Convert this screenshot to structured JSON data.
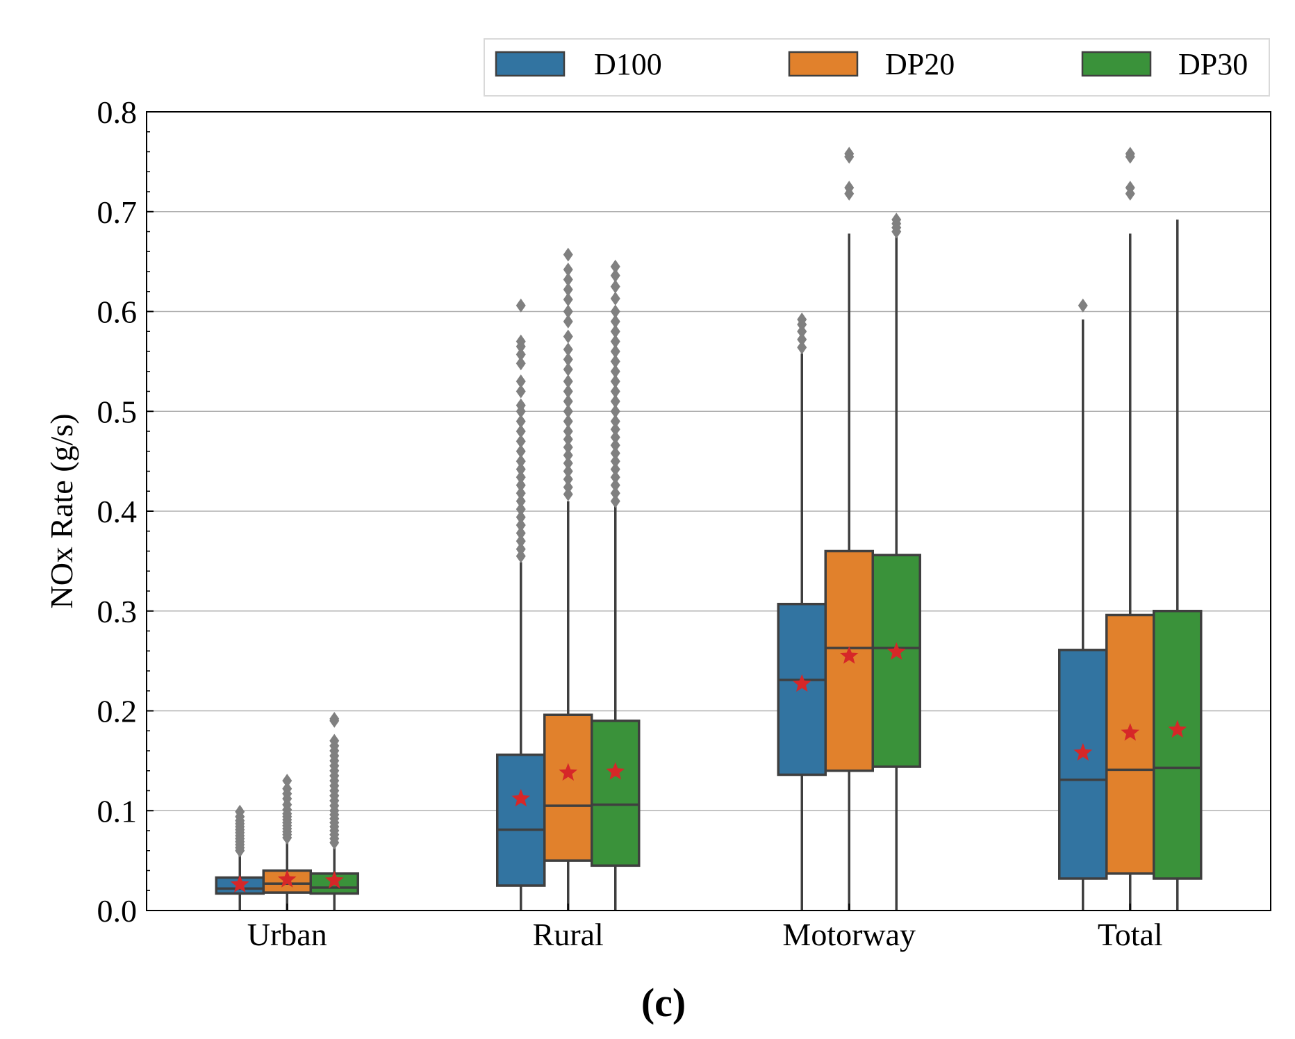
{
  "chart_data": {
    "type": "box",
    "title": "",
    "xlabel": "",
    "ylabel": "NOx Rate (g/s)",
    "ylim": [
      0.0,
      0.8
    ],
    "yticks": [
      "0.0",
      "0.1",
      "0.2",
      "0.3",
      "0.4",
      "0.5",
      "0.6",
      "0.7",
      "0.8"
    ],
    "grid": "horizontal",
    "legend_position": "top-right",
    "mean_marker": "star",
    "categories": [
      "Urban",
      "Rural",
      "Motorway",
      "Total"
    ],
    "series": [
      {
        "name": "D100",
        "color": "#3274a1",
        "boxes": [
          {
            "whisker_low": 0.0,
            "q1": 0.017,
            "median": 0.022,
            "q3": 0.033,
            "whisker_high": 0.057,
            "mean": 0.026,
            "outliers": [
              0.06,
              0.063,
              0.066,
              0.069,
              0.072,
              0.075,
              0.078,
              0.081,
              0.084,
              0.087,
              0.09,
              0.094,
              0.099
            ]
          },
          {
            "whisker_low": 0.0,
            "q1": 0.025,
            "median": 0.081,
            "q3": 0.156,
            "whisker_high": 0.349,
            "mean": 0.112,
            "outliers": [
              0.355,
              0.362,
              0.37,
              0.378,
              0.386,
              0.394,
              0.402,
              0.41,
              0.418,
              0.426,
              0.434,
              0.442,
              0.45,
              0.46,
              0.47,
              0.48,
              0.49,
              0.5,
              0.506,
              0.52,
              0.53,
              0.548,
              0.557,
              0.565,
              0.57,
              0.606
            ]
          },
          {
            "whisker_low": 0.0,
            "q1": 0.136,
            "median": 0.231,
            "q3": 0.307,
            "whisker_high": 0.558,
            "mean": 0.227,
            "outliers": [
              0.564,
              0.572,
              0.58,
              0.587,
              0.592
            ]
          },
          {
            "whisker_low": 0.0,
            "q1": 0.032,
            "median": 0.131,
            "q3": 0.261,
            "whisker_high": 0.592,
            "mean": 0.158,
            "outliers": [
              0.606
            ]
          }
        ]
      },
      {
        "name": "DP20",
        "color": "#e1812c",
        "boxes": [
          {
            "whisker_low": 0.0,
            "q1": 0.018,
            "median": 0.027,
            "q3": 0.04,
            "whisker_high": 0.069,
            "mean": 0.031,
            "outliers": [
              0.073,
              0.076,
              0.079,
              0.082,
              0.085,
              0.088,
              0.091,
              0.094,
              0.097,
              0.101,
              0.106,
              0.112,
              0.117,
              0.122,
              0.13
            ]
          },
          {
            "whisker_low": 0.0,
            "q1": 0.05,
            "median": 0.105,
            "q3": 0.196,
            "whisker_high": 0.41,
            "mean": 0.138,
            "outliers": [
              0.417,
              0.424,
              0.432,
              0.44,
              0.448,
              0.456,
              0.464,
              0.472,
              0.48,
              0.49,
              0.5,
              0.51,
              0.52,
              0.53,
              0.542,
              0.552,
              0.562,
              0.575,
              0.59,
              0.6,
              0.612,
              0.622,
              0.632,
              0.642,
              0.657
            ]
          },
          {
            "whisker_low": 0.0,
            "q1": 0.14,
            "median": 0.263,
            "q3": 0.36,
            "whisker_high": 0.678,
            "mean": 0.255,
            "outliers": [
              0.718,
              0.724,
              0.755,
              0.758
            ]
          },
          {
            "whisker_low": 0.0,
            "q1": 0.037,
            "median": 0.141,
            "q3": 0.296,
            "whisker_high": 0.678,
            "mean": 0.178,
            "outliers": [
              0.718,
              0.724,
              0.755,
              0.758
            ]
          }
        ]
      },
      {
        "name": "DP30",
        "color": "#3a923a",
        "boxes": [
          {
            "whisker_low": 0.0,
            "q1": 0.017,
            "median": 0.023,
            "q3": 0.037,
            "whisker_high": 0.064,
            "mean": 0.03,
            "outliers": [
              0.068,
              0.072,
              0.076,
              0.08,
              0.084,
              0.088,
              0.092,
              0.096,
              0.1,
              0.105,
              0.11,
              0.115,
              0.12,
              0.125,
              0.13,
              0.135,
              0.14,
              0.145,
              0.15,
              0.155,
              0.16,
              0.165,
              0.17,
              0.19,
              0.192
            ]
          },
          {
            "whisker_low": 0.0,
            "q1": 0.045,
            "median": 0.106,
            "q3": 0.19,
            "whisker_high": 0.406,
            "mean": 0.139,
            "outliers": [
              0.41,
              0.418,
              0.426,
              0.434,
              0.442,
              0.45,
              0.458,
              0.466,
              0.474,
              0.482,
              0.49,
              0.5,
              0.51,
              0.52,
              0.53,
              0.54,
              0.55,
              0.56,
              0.57,
              0.58,
              0.59,
              0.6,
              0.613,
              0.625,
              0.636,
              0.645
            ]
          },
          {
            "whisker_low": 0.0,
            "q1": 0.144,
            "median": 0.263,
            "q3": 0.356,
            "whisker_high": 0.675,
            "mean": 0.259,
            "outliers": [
              0.68,
              0.684,
              0.688,
              0.692
            ]
          },
          {
            "whisker_low": 0.0,
            "q1": 0.032,
            "median": 0.143,
            "q3": 0.3,
            "whisker_high": 0.692,
            "mean": 0.181,
            "outliers": []
          }
        ]
      }
    ],
    "panel_label": "(c)"
  }
}
